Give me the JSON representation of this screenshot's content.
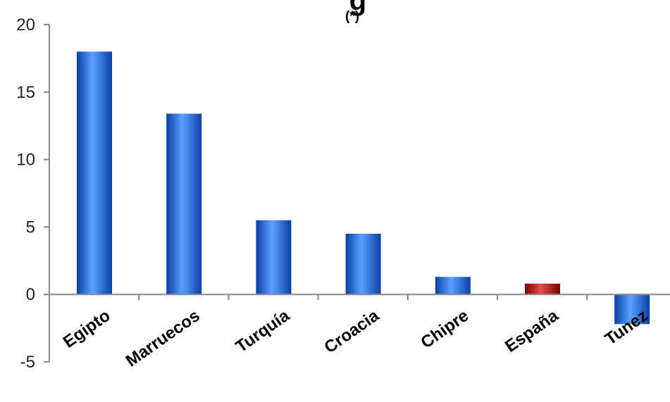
{
  "chart_data": {
    "type": "bar",
    "title_fragment": "g",
    "note": "(*)",
    "categories": [
      "Egipto",
      "Marruecos",
      "Turquía",
      "Croacia",
      "Chipre",
      "España",
      "Tunez"
    ],
    "values": [
      18.0,
      13.4,
      5.5,
      4.5,
      1.3,
      0.8,
      -2.2
    ],
    "highlight_category": "España",
    "ylim": [
      -5,
      20
    ],
    "yticks": [
      -5,
      0,
      5,
      10,
      15,
      20
    ],
    "grid": false,
    "legend": "none",
    "colors": {
      "bar": "#1e6fe0",
      "bar_dark": "#0a3fa8",
      "bar_light": "#5aa2ff",
      "highlight": "#c81414",
      "highlight_dark": "#7a0000",
      "highlight_light": "#e84a4a",
      "axis": "#888888"
    }
  }
}
